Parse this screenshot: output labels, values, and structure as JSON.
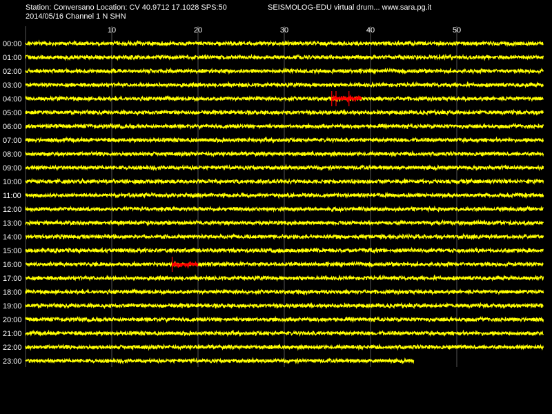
{
  "header": {
    "station_line": "Station: Conversano Location: CV 40.9712 17.1028 SPS:50",
    "date_line": "2014/05/16  Channel 1 N SHN",
    "product_line": "SEISMOLOG-EDU virtual drum... www.sara.pg.it"
  },
  "colors": {
    "background": "#000000",
    "trace": "#ffff00",
    "event": "#ff0000",
    "grid": "#ffffff",
    "text": "#ffffff"
  },
  "chart_data": {
    "type": "line",
    "title": "",
    "xlabel": "",
    "ylabel": "",
    "x_unit": "minutes",
    "xlim": [
      0,
      60
    ],
    "x_ticks": [
      10,
      20,
      30,
      40,
      50
    ],
    "grid": true,
    "hour_labels": [
      "00:00",
      "01:00",
      "02:00",
      "03:00",
      "04:00",
      "05:00",
      "06:00",
      "07:00",
      "08:00",
      "09:00",
      "10:00",
      "11:00",
      "12:00",
      "13:00",
      "14:00",
      "15:00",
      "16:00",
      "17:00",
      "18:00",
      "19:00",
      "20:00",
      "21:00",
      "22:00",
      "23:00"
    ],
    "trace_end_minute": [
      60,
      60,
      60,
      60,
      60,
      60,
      60,
      60,
      60,
      60,
      60,
      60,
      60,
      60,
      60,
      60,
      60,
      60,
      60,
      60,
      60,
      60,
      60,
      45
    ],
    "events": [
      {
        "hour": "04:00",
        "start_minute": 35.5,
        "end_minute": 39,
        "markers": [
          35.5,
          36,
          37.5
        ]
      },
      {
        "hour": "16:00",
        "start_minute": 17,
        "end_minute": 20,
        "markers": [
          17
        ]
      }
    ]
  }
}
